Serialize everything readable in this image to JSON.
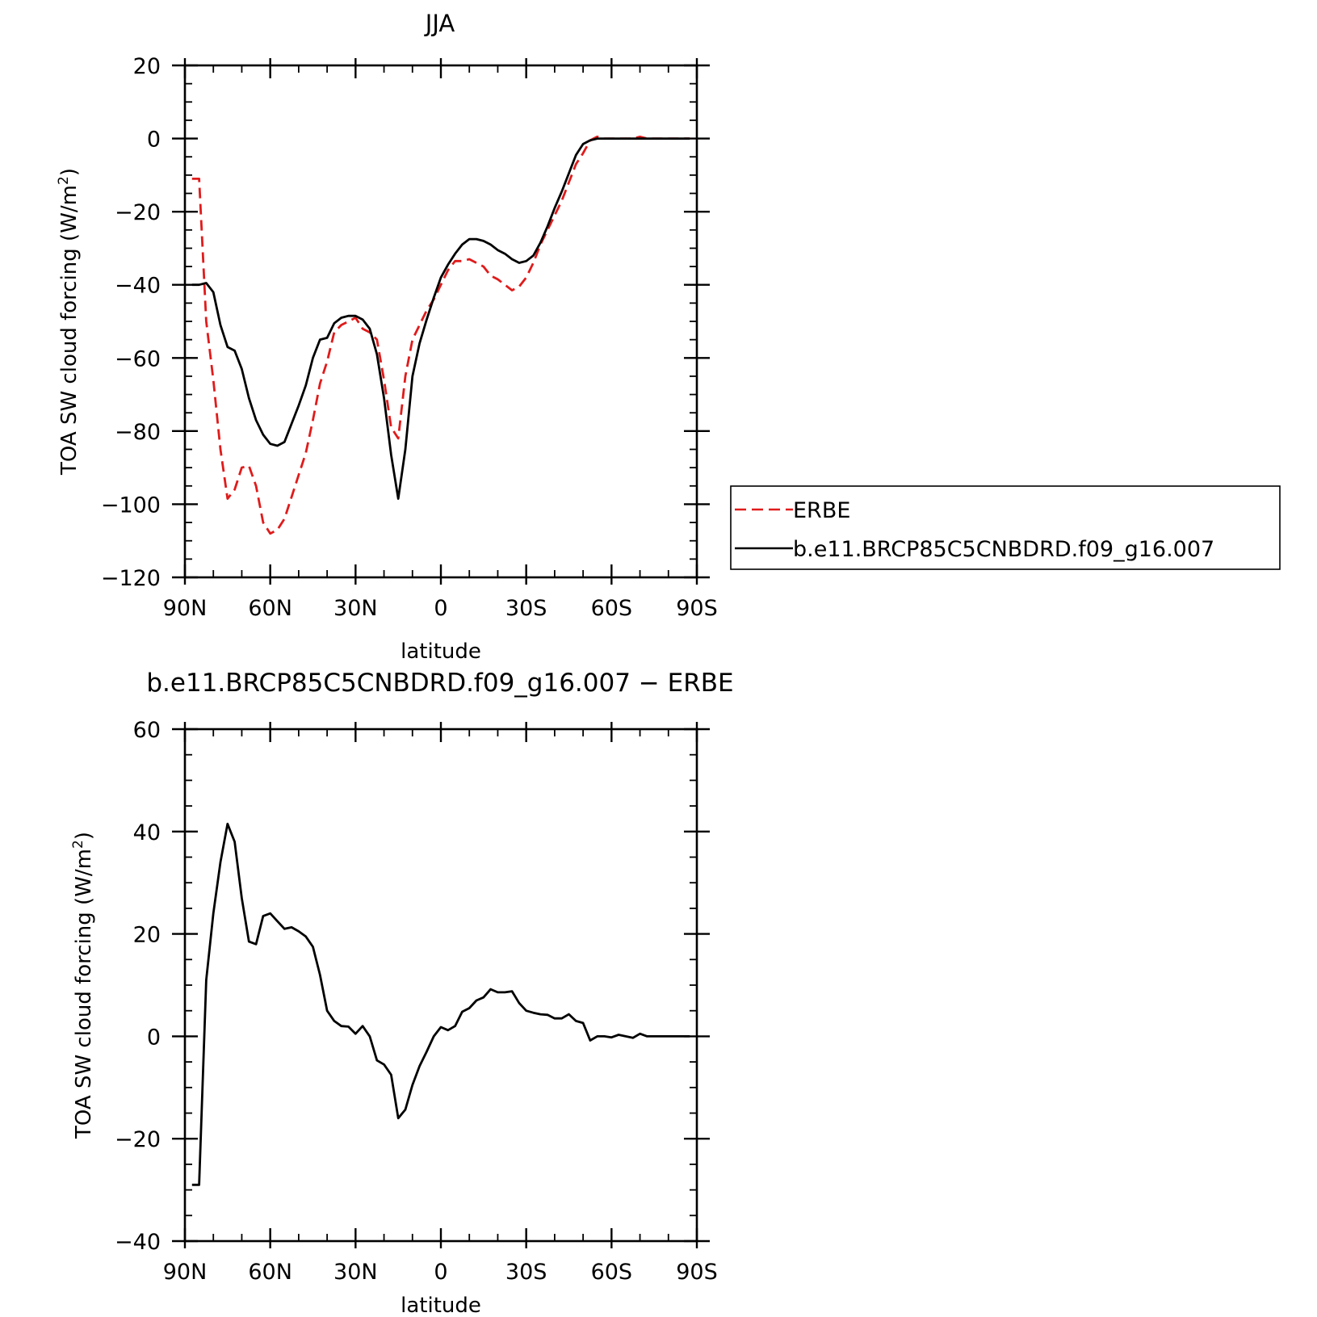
{
  "chart_data": [
    {
      "type": "line",
      "title": "JJA",
      "xlabel": "latitude",
      "ylabel_prefix": "TOA SW cloud forcing (W/m",
      "ylabel_sup": "2",
      "ylabel_suffix": ")",
      "xlim": [
        90,
        -90
      ],
      "ylim": [
        -120,
        20
      ],
      "x_ticks": [
        90,
        60,
        30,
        0,
        -30,
        -60,
        -90
      ],
      "x_tick_labels": [
        "90N",
        "60N",
        "30N",
        "0",
        "30S",
        "60S",
        "90S"
      ],
      "y_ticks": [
        20,
        0,
        -20,
        -40,
        -60,
        -80,
        -100,
        -120
      ],
      "y_tick_labels": [
        "20",
        "0",
        "−20",
        "−40",
        "−60",
        "−80",
        "−100",
        "−120"
      ],
      "legend_position": "right",
      "series": [
        {
          "name": "ERBE",
          "color": "#e01b1b",
          "dashed": true,
          "x": [
            87.5,
            85,
            82.5,
            80,
            77.5,
            75,
            72.5,
            70,
            67.5,
            65,
            62.5,
            60,
            57.5,
            55,
            52.5,
            50,
            47.5,
            45,
            42.5,
            40,
            37.5,
            35,
            32.5,
            30,
            27.5,
            25,
            22.5,
            20,
            17.5,
            15,
            12.5,
            10,
            7.5,
            5,
            2.5,
            0,
            -2.5,
            -5,
            -7.5,
            -10,
            -12.5,
            -15,
            -17.5,
            -20,
            -22.5,
            -25,
            -27.5,
            -30,
            -32.5,
            -35,
            -37.5,
            -40,
            -42.5,
            -45,
            -47.5,
            -50,
            -52.5,
            -55,
            -57.5,
            -60,
            -62.5,
            -65,
            -67.5,
            -70,
            -72.5,
            -75,
            -77.5,
            -80,
            -82.5,
            -85,
            -87.5
          ],
          "y": [
            -11,
            -11,
            -50,
            -66,
            -85,
            -98.5,
            -96,
            -90,
            -89.5,
            -95,
            -105,
            -108,
            -107,
            -104,
            -98,
            -92,
            -86,
            -77,
            -67,
            -61,
            -53,
            -51,
            -50,
            -49,
            -52,
            -53,
            -55,
            -66,
            -79,
            -82,
            -65,
            -55,
            -51,
            -47,
            -44,
            -40,
            -36,
            -33.5,
            -33.5,
            -33,
            -34,
            -35,
            -37.5,
            -38.5,
            -40,
            -41.5,
            -40.5,
            -38,
            -34,
            -29,
            -25,
            -21,
            -17,
            -12,
            -7,
            -4,
            -0.5,
            0.5,
            0,
            0,
            0,
            0,
            0,
            0.5,
            0,
            0,
            0,
            0,
            0,
            0,
            0
          ]
        },
        {
          "name": "b.e11.BRCP85C5CNBDRD.f09_g16.007",
          "color": "#000000",
          "dashed": false,
          "x": [
            87.5,
            85,
            82.5,
            80,
            77.5,
            75,
            72.5,
            70,
            67.5,
            65,
            62.5,
            60,
            57.5,
            55,
            52.5,
            50,
            47.5,
            45,
            42.5,
            40,
            37.5,
            35,
            32.5,
            30,
            27.5,
            25,
            22.5,
            20,
            17.5,
            15,
            12.5,
            10,
            7.5,
            5,
            2.5,
            0,
            -2.5,
            -5,
            -7.5,
            -10,
            -12.5,
            -15,
            -17.5,
            -20,
            -22.5,
            -25,
            -27.5,
            -30,
            -32.5,
            -35,
            -37.5,
            -40,
            -42.5,
            -45,
            -47.5,
            -50,
            -52.5,
            -55,
            -57.5,
            -60,
            -62.5,
            -65,
            -67.5,
            -70,
            -72.5,
            -75,
            -77.5,
            -80,
            -82.5,
            -85,
            -87.5
          ],
          "y": [
            -40,
            -40,
            -39.5,
            -42,
            -51,
            -57,
            -58,
            -63,
            -71,
            -77,
            -81,
            -83.5,
            -84,
            -83,
            -78,
            -73,
            -67.5,
            -60,
            -55,
            -54.5,
            -50.5,
            -49,
            -48.5,
            -48.5,
            -49.5,
            -52,
            -59,
            -71,
            -86.5,
            -98.5,
            -85,
            -65,
            -56,
            -49.5,
            -43.5,
            -38,
            -34.5,
            -31.5,
            -29,
            -27.5,
            -27.5,
            -28,
            -29,
            -30.5,
            -31.5,
            -33,
            -34,
            -33.5,
            -32,
            -28.5,
            -24,
            -19,
            -14.5,
            -9.5,
            -4.5,
            -1.5,
            -0.5,
            0,
            0,
            0,
            0,
            0,
            0,
            0,
            0,
            0,
            0,
            0,
            0,
            0,
            0
          ]
        }
      ]
    },
    {
      "type": "line",
      "title": "b.e11.BRCP85C5CNBDRD.f09_g16.007 − ERBE",
      "xlabel": "latitude",
      "ylabel_prefix": "TOA SW cloud forcing (W/m",
      "ylabel_sup": "2",
      "ylabel_suffix": ")",
      "xlim": [
        90,
        -90
      ],
      "ylim": [
        -40,
        60
      ],
      "x_ticks": [
        90,
        60,
        30,
        0,
        -30,
        -60,
        -90
      ],
      "x_tick_labels": [
        "90N",
        "60N",
        "30N",
        "0",
        "30S",
        "60S",
        "90S"
      ],
      "y_ticks": [
        60,
        40,
        20,
        0,
        -20,
        -40
      ],
      "y_tick_labels": [
        "60",
        "40",
        "20",
        "0",
        "−20",
        "−40"
      ],
      "series": [
        {
          "name": "",
          "color": "#000000",
          "dashed": false,
          "x": [
            87.5,
            85,
            82.5,
            80,
            77.5,
            75,
            72.5,
            70,
            67.5,
            65,
            62.5,
            60,
            57.5,
            55,
            52.5,
            50,
            47.5,
            45,
            42.5,
            40,
            37.5,
            35,
            32.5,
            30,
            27.5,
            25,
            22.5,
            20,
            17.5,
            15,
            12.5,
            10,
            7.5,
            5,
            2.5,
            0,
            -2.5,
            -5,
            -7.5,
            -10,
            -12.5,
            -15,
            -17.5,
            -20,
            -22.5,
            -25,
            -27.5,
            -30,
            -32.5,
            -35,
            -37.5,
            -40,
            -42.5,
            -45,
            -47.5,
            -50,
            -52.5,
            -55,
            -57.5,
            -60,
            -62.5,
            -65,
            -67.5,
            -70,
            -72.5,
            -75,
            -77.5,
            -80,
            -82.5,
            -85,
            -87.5
          ],
          "y": [
            -29,
            -29,
            11,
            24,
            34,
            41.5,
            38,
            27,
            18.5,
            18,
            23.5,
            24,
            22.5,
            21,
            21.3,
            20.5,
            19.5,
            17.5,
            12,
            5,
            3,
            2,
            1.9,
            0.5,
            2,
            0,
            -4.7,
            -5.5,
            -7.5,
            -16,
            -14.3,
            -9.5,
            -5.8,
            -3,
            0,
            1.8,
            1.2,
            2,
            4.8,
            5.5,
            7,
            7.6,
            9.2,
            8.6,
            8.6,
            8.8,
            6.5,
            5,
            4.6,
            4.3,
            4.2,
            3.5,
            3.5,
            4.3,
            3,
            2.6,
            -0.8,
            0,
            0,
            -0.2,
            0.3,
            0,
            -0.3,
            0.5,
            0,
            0,
            0,
            0,
            0,
            0,
            0
          ]
        }
      ]
    }
  ]
}
